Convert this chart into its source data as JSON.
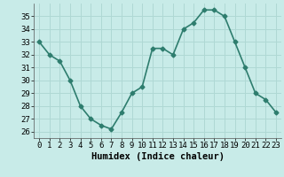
{
  "x": [
    0,
    1,
    2,
    3,
    4,
    5,
    6,
    7,
    8,
    9,
    10,
    11,
    12,
    13,
    14,
    15,
    16,
    17,
    18,
    19,
    20,
    21,
    22,
    23
  ],
  "y": [
    33,
    32,
    31.5,
    30,
    28,
    27,
    26.5,
    26.2,
    27.5,
    29,
    29.5,
    32.5,
    32.5,
    32,
    34,
    34.5,
    35.5,
    35.5,
    35,
    33,
    31,
    29,
    28.5,
    27.5
  ],
  "line_color": "#2e7d6e",
  "marker": "D",
  "marker_size": 2.5,
  "bg_color": "#c8ebe8",
  "grid_color": "#afd8d4",
  "xlabel": "Humidex (Indice chaleur)",
  "ylim": [
    25.5,
    36.0
  ],
  "xlim": [
    -0.5,
    23.5
  ],
  "yticks": [
    26,
    27,
    28,
    29,
    30,
    31,
    32,
    33,
    34,
    35
  ],
  "xticks": [
    0,
    1,
    2,
    3,
    4,
    5,
    6,
    7,
    8,
    9,
    10,
    11,
    12,
    13,
    14,
    15,
    16,
    17,
    18,
    19,
    20,
    21,
    22,
    23
  ],
  "xlabel_fontsize": 7.5,
  "tick_fontsize": 6.5,
  "linewidth": 1.2
}
